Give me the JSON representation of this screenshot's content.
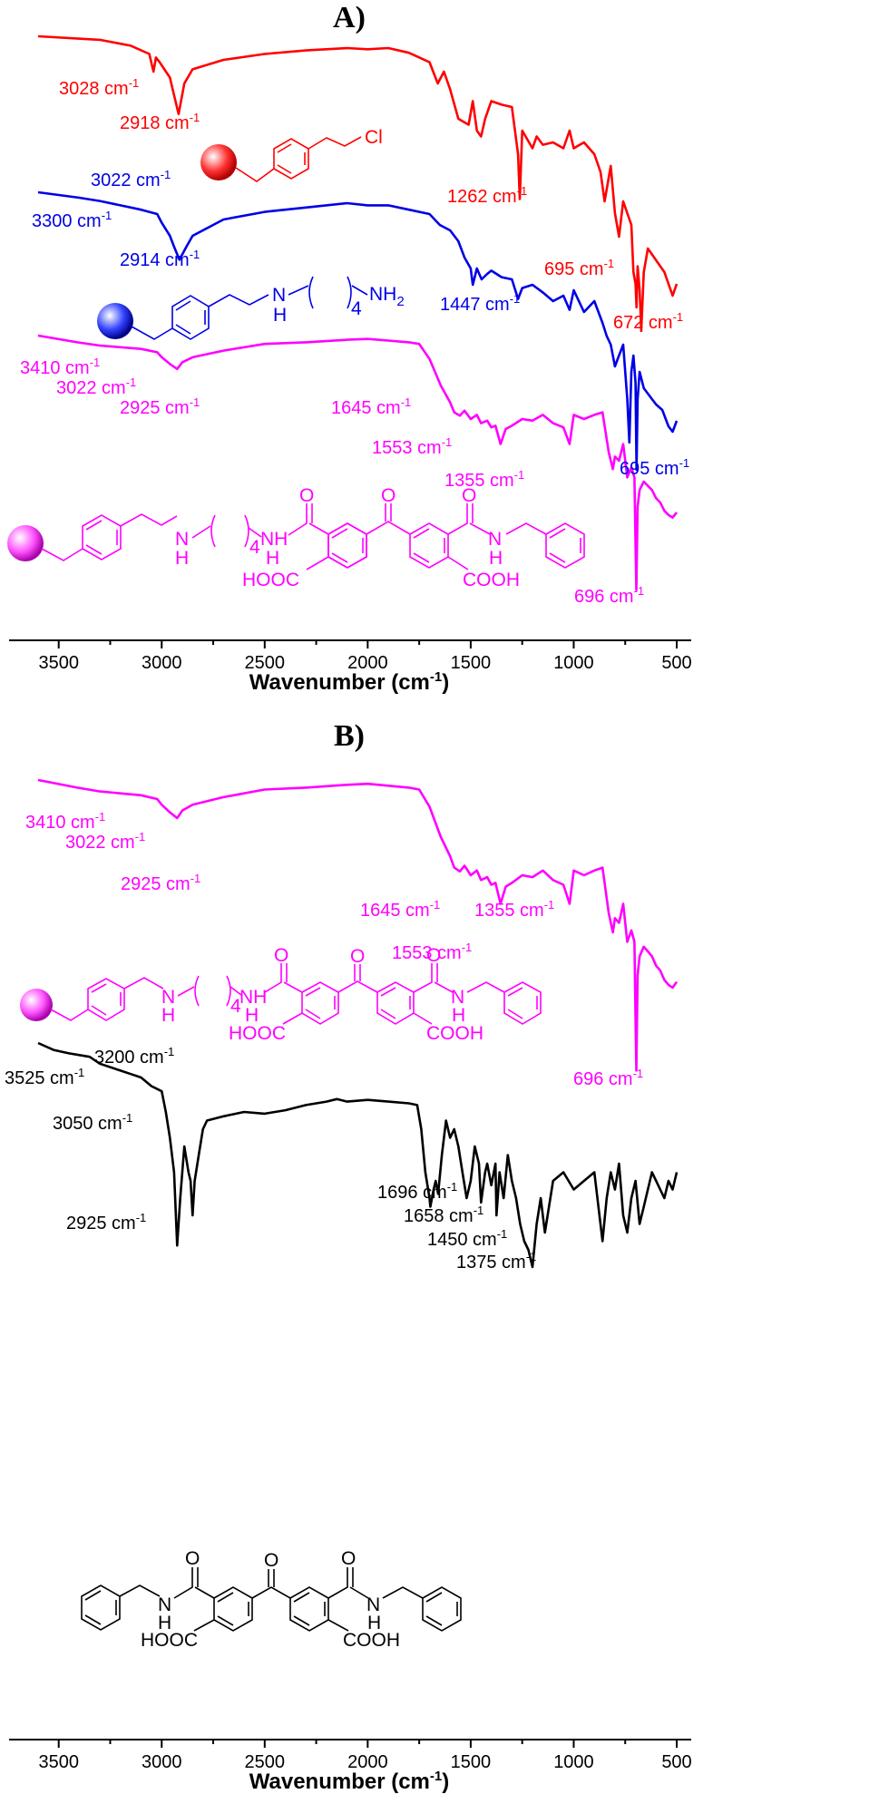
{
  "colors": {
    "red": "#ff0000",
    "blue": "#0000e6",
    "magenta": "#ff00ff",
    "black": "#000000"
  },
  "chart_data": [
    {
      "type": "line",
      "panel": "A)",
      "xlabel": "Wavenumber (cm⁻¹)",
      "xlim": [
        3600,
        500
      ],
      "x_reversed": true,
      "xticks": [
        "3500",
        "3000",
        "2500",
        "2000",
        "1500",
        "1000",
        "500"
      ],
      "grid": false,
      "series": [
        {
          "color": "red",
          "x": [
            3600,
            3300,
            3150,
            3060,
            3040,
            3028,
            3010,
            2960,
            2940,
            2918,
            2890,
            2850,
            2700,
            2500,
            2300,
            2100,
            2000,
            1900,
            1800,
            1700,
            1660,
            1630,
            1600,
            1560,
            1540,
            1510,
            1490,
            1470,
            1450,
            1430,
            1400,
            1350,
            1300,
            1270,
            1262,
            1250,
            1200,
            1180,
            1150,
            1100,
            1050,
            1020,
            1000,
            950,
            900,
            870,
            850,
            820,
            800,
            780,
            760,
            740,
            720,
            710,
            700,
            695,
            690,
            680,
            672,
            660,
            640,
            600,
            560,
            520,
            500
          ],
          "y": [
            0,
            3,
            8,
            15,
            30,
            18,
            22,
            35,
            50,
            66,
            40,
            28,
            20,
            15,
            12,
            10,
            11,
            10,
            14,
            22,
            40,
            30,
            45,
            70,
            72,
            75,
            55,
            80,
            85,
            70,
            55,
            58,
            60,
            100,
            138,
            80,
            95,
            85,
            92,
            90,
            95,
            80,
            95,
            90,
            100,
            115,
            140,
            110,
            150,
            170,
            140,
            150,
            160,
            200,
            210,
            230,
            195,
            215,
            250,
            200,
            180,
            190,
            200,
            220,
            210
          ]
        },
        {
          "color": "blue",
          "x": [
            3600,
            3400,
            3300,
            3200,
            3100,
            3022,
            3000,
            2960,
            2940,
            2914,
            2880,
            2850,
            2700,
            2500,
            2300,
            2100,
            2000,
            1900,
            1800,
            1700,
            1650,
            1600,
            1560,
            1530,
            1500,
            1490,
            1470,
            1447,
            1420,
            1400,
            1350,
            1300,
            1270,
            1250,
            1200,
            1150,
            1100,
            1050,
            1020,
            1000,
            950,
            900,
            860,
            840,
            820,
            800,
            790,
            780,
            760,
            740,
            730,
            720,
            710,
            700,
            695,
            690,
            680,
            660,
            640,
            620,
            600,
            570,
            540,
            520,
            500
          ],
          "y": [
            0,
            5,
            8,
            12,
            16,
            20,
            28,
            40,
            50,
            62,
            50,
            40,
            25,
            18,
            14,
            10,
            12,
            12,
            16,
            20,
            30,
            35,
            45,
            60,
            70,
            85,
            70,
            80,
            75,
            72,
            78,
            80,
            98,
            88,
            85,
            92,
            100,
            95,
            108,
            90,
            110,
            100,
            120,
            132,
            140,
            160,
            155,
            150,
            140,
            190,
            230,
            165,
            150,
            175,
            255,
            190,
            165,
            180,
            185,
            190,
            195,
            200,
            215,
            220,
            210
          ]
        },
        {
          "color": "magenta",
          "x": [
            3600,
            3410,
            3300,
            3100,
            3022,
            3000,
            2960,
            2925,
            2900,
            2850,
            2700,
            2500,
            2300,
            2100,
            2000,
            1900,
            1800,
            1750,
            1700,
            1645,
            1600,
            1580,
            1553,
            1530,
            1500,
            1470,
            1450,
            1420,
            1400,
            1380,
            1355,
            1330,
            1300,
            1250,
            1200,
            1150,
            1100,
            1050,
            1020,
            1000,
            950,
            900,
            860,
            830,
            810,
            800,
            780,
            760,
            740,
            720,
            705,
            700,
            696,
            690,
            680,
            660,
            640,
            620,
            600,
            580,
            560,
            540,
            520,
            500
          ],
          "y": [
            0,
            8,
            12,
            16,
            20,
            26,
            34,
            40,
            32,
            26,
            18,
            10,
            8,
            5,
            4,
            6,
            8,
            10,
            28,
            60,
            80,
            92,
            96,
            90,
            100,
            95,
            105,
            102,
            110,
            108,
            130,
            112,
            108,
            100,
            102,
            95,
            105,
            110,
            130,
            95,
            100,
            95,
            92,
            140,
            160,
            145,
            150,
            130,
            170,
            158,
            170,
            250,
            305,
            205,
            185,
            175,
            180,
            185,
            195,
            200,
            210,
            215,
            218,
            212
          ]
        }
      ],
      "annotations": [
        {
          "text": "3028 cm",
          "sup": "-1",
          "color": "red",
          "x": 3028
        },
        {
          "text": "2918 cm",
          "sup": "-1",
          "color": "red",
          "x": 2918
        },
        {
          "text": "1262 cm",
          "sup": "-1",
          "color": "red",
          "x": 1262
        },
        {
          "text": "695 cm",
          "sup": "-1",
          "color": "red",
          "x": 695
        },
        {
          "text": "672 cm",
          "sup": "-1",
          "color": "red",
          "x": 672
        },
        {
          "text": "3022 cm",
          "sup": "-1",
          "color": "blue",
          "x": 3022
        },
        {
          "text": "3300 cm",
          "sup": "-1",
          "color": "blue",
          "x": 3300
        },
        {
          "text": "2914 cm",
          "sup": "-1",
          "color": "blue",
          "x": 2914
        },
        {
          "text": "1447 cm",
          "sup": "-1",
          "color": "blue",
          "x": 1447
        },
        {
          "text": "695 cm",
          "sup": "-1",
          "color": "blue",
          "x": 695
        },
        {
          "text": "3410 cm",
          "sup": "-1",
          "color": "magenta",
          "x": 3410
        },
        {
          "text": "3022 cm",
          "sup": "-1",
          "color": "magenta",
          "x": 3022
        },
        {
          "text": "2925 cm",
          "sup": "-1",
          "color": "magenta",
          "x": 2925
        },
        {
          "text": "1645 cm",
          "sup": "-1",
          "color": "magenta",
          "x": 1645
        },
        {
          "text": "1553 cm",
          "sup": "-1",
          "color": "magenta",
          "x": 1553
        },
        {
          "text": "1355 cm",
          "sup": "-1",
          "color": "magenta",
          "x": 1355
        },
        {
          "text": "696 cm",
          "sup": "-1",
          "color": "magenta",
          "x": 696
        }
      ]
    },
    {
      "type": "line",
      "panel": "B)",
      "xlabel": "Wavenumber (cm⁻¹)",
      "xlim": [
        3600,
        500
      ],
      "x_reversed": true,
      "xticks": [
        "3500",
        "3000",
        "2500",
        "2000",
        "1500",
        "1000",
        "500"
      ],
      "grid": false,
      "series": [
        {
          "color": "magenta",
          "x": [
            3600,
            3410,
            3300,
            3100,
            3022,
            3000,
            2960,
            2925,
            2900,
            2850,
            2700,
            2500,
            2300,
            2100,
            2000,
            1900,
            1800,
            1750,
            1700,
            1645,
            1600,
            1580,
            1553,
            1530,
            1500,
            1470,
            1450,
            1420,
            1400,
            1380,
            1355,
            1330,
            1300,
            1250,
            1200,
            1150,
            1100,
            1050,
            1020,
            1000,
            950,
            900,
            860,
            830,
            810,
            800,
            780,
            760,
            740,
            720,
            705,
            700,
            696,
            690,
            680,
            660,
            640,
            620,
            600,
            580,
            560,
            540,
            520,
            500
          ],
          "y": [
            0,
            8,
            12,
            16,
            20,
            26,
            34,
            40,
            32,
            26,
            18,
            10,
            8,
            5,
            4,
            6,
            8,
            10,
            28,
            60,
            80,
            92,
            96,
            90,
            100,
            95,
            105,
            102,
            110,
            108,
            130,
            112,
            108,
            100,
            102,
            95,
            105,
            110,
            130,
            95,
            100,
            95,
            92,
            140,
            160,
            145,
            150,
            130,
            170,
            158,
            170,
            250,
            305,
            205,
            185,
            175,
            180,
            185,
            195,
            200,
            210,
            215,
            218,
            212
          ]
        },
        {
          "color": "black",
          "x": [
            3600,
            3525,
            3450,
            3350,
            3300,
            3200,
            3150,
            3100,
            3050,
            3000,
            2980,
            2960,
            2940,
            2925,
            2910,
            2890,
            2870,
            2860,
            2850,
            2840,
            2820,
            2800,
            2780,
            2700,
            2600,
            2500,
            2400,
            2300,
            2200,
            2150,
            2100,
            2000,
            1900,
            1800,
            1760,
            1740,
            1720,
            1700,
            1696,
            1680,
            1670,
            1658,
            1640,
            1620,
            1600,
            1580,
            1560,
            1540,
            1520,
            1500,
            1480,
            1460,
            1450,
            1430,
            1420,
            1400,
            1380,
            1375,
            1360,
            1340,
            1320,
            1300,
            1280,
            1260,
            1240,
            1220,
            1200,
            1180,
            1160,
            1140,
            1100,
            1050,
            1000,
            950,
            900,
            880,
            860,
            840,
            820,
            800,
            780,
            760,
            740,
            720,
            700,
            680,
            660,
            640,
            620,
            600,
            580,
            560,
            540,
            520,
            500
          ],
          "y": [
            0,
            8,
            12,
            16,
            24,
            32,
            36,
            40,
            50,
            56,
            80,
            110,
            150,
            235,
            180,
            120,
            150,
            160,
            200,
            160,
            130,
            100,
            90,
            85,
            80,
            82,
            78,
            72,
            68,
            65,
            68,
            66,
            68,
            70,
            72,
            100,
            150,
            180,
            190,
            170,
            160,
            175,
            130,
            90,
            110,
            100,
            120,
            150,
            180,
            160,
            120,
            140,
            185,
            150,
            140,
            165,
            140,
            200,
            150,
            180,
            130,
            160,
            180,
            210,
            230,
            240,
            260,
            210,
            180,
            220,
            160,
            150,
            170,
            160,
            150,
            190,
            230,
            180,
            150,
            170,
            140,
            200,
            220,
            180,
            160,
            210,
            190,
            170,
            150,
            160,
            170,
            180,
            160,
            170,
            150
          ]
        }
      ],
      "annotations": [
        {
          "text": "3410 cm",
          "sup": "-1",
          "color": "magenta",
          "x": 3410
        },
        {
          "text": "3022 cm",
          "sup": "-1",
          "color": "magenta",
          "x": 3022
        },
        {
          "text": "2925 cm",
          "sup": "-1",
          "color": "magenta",
          "x": 2925
        },
        {
          "text": "1645 cm",
          "sup": "-1",
          "color": "magenta",
          "x": 1645
        },
        {
          "text": "1355 cm",
          "sup": "-1",
          "color": "magenta",
          "x": 1355
        },
        {
          "text": "1553 cm",
          "sup": "-1",
          "color": "magenta",
          "x": 1553
        },
        {
          "text": "696 cm",
          "sup": "-1",
          "color": "magenta",
          "x": 696
        },
        {
          "text": "3525 cm",
          "sup": "-1",
          "color": "black",
          "x": 3525
        },
        {
          "text": "3200 cm",
          "sup": "-1",
          "color": "black",
          "x": 3200
        },
        {
          "text": "3050 cm",
          "sup": "-1",
          "color": "black",
          "x": 3050
        },
        {
          "text": "2925 cm",
          "sup": "-1",
          "color": "black",
          "x": 2925
        },
        {
          "text": "1696 cm",
          "sup": "-1",
          "color": "black",
          "x": 1696
        },
        {
          "text": "1658 cm",
          "sup": "-1",
          "color": "black",
          "x": 1658
        },
        {
          "text": "1450 cm",
          "sup": "-1",
          "color": "black",
          "x": 1450
        },
        {
          "text": "1375 cm",
          "sup": "-1",
          "color": "black",
          "x": 1375
        }
      ]
    }
  ],
  "structures": {
    "cl_label": "Cl",
    "n_label": "N",
    "h_label": "H",
    "nh_label": "NH",
    "nh2_label": "NH",
    "sub2": "2",
    "n4": "4",
    "o_label": "O",
    "hooc_label": "HOOC",
    "cooh_label": "COOH"
  }
}
